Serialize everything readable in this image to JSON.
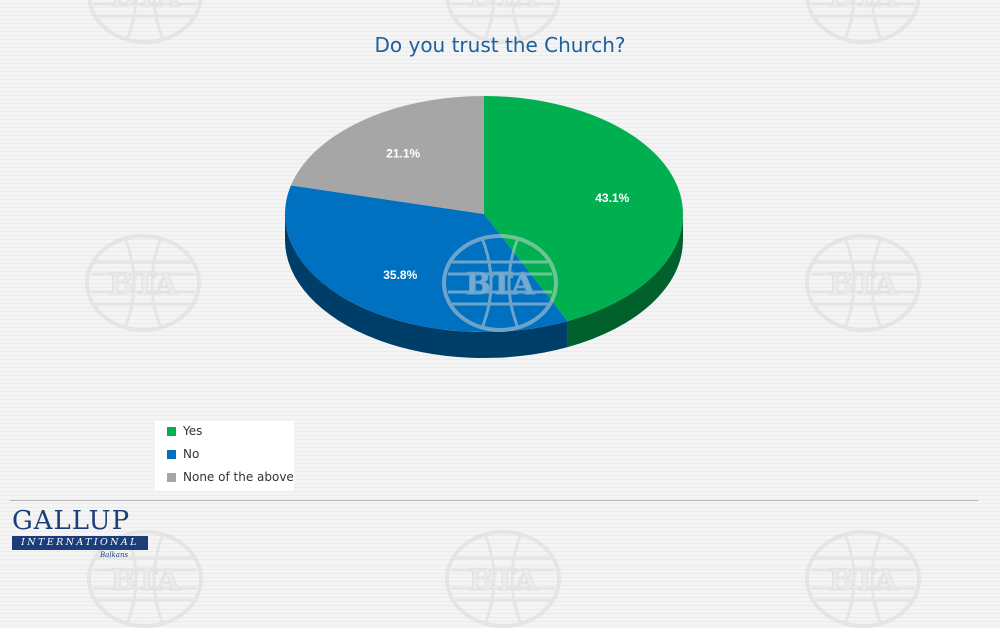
{
  "watermark": {
    "text": "BTA"
  },
  "logo": {
    "name": "GALLUP",
    "band": "INTERNATIONAL",
    "sub": "Balkans"
  },
  "colors": {
    "yes": "#00b050",
    "no": "#0070c0",
    "none": "#a6a6a6",
    "title": "#1f5f9e"
  },
  "chart_data": {
    "type": "pie",
    "title": "Do you trust the Church?",
    "slices": [
      {
        "label": "Yes",
        "value": 43.1,
        "display": "43.1%"
      },
      {
        "label": "No",
        "value": 35.8,
        "display": "35.8%"
      },
      {
        "label": "None of the above",
        "value": 21.1,
        "display": "21.1%"
      }
    ],
    "legend_position": "bottom-left",
    "style": "3d"
  }
}
